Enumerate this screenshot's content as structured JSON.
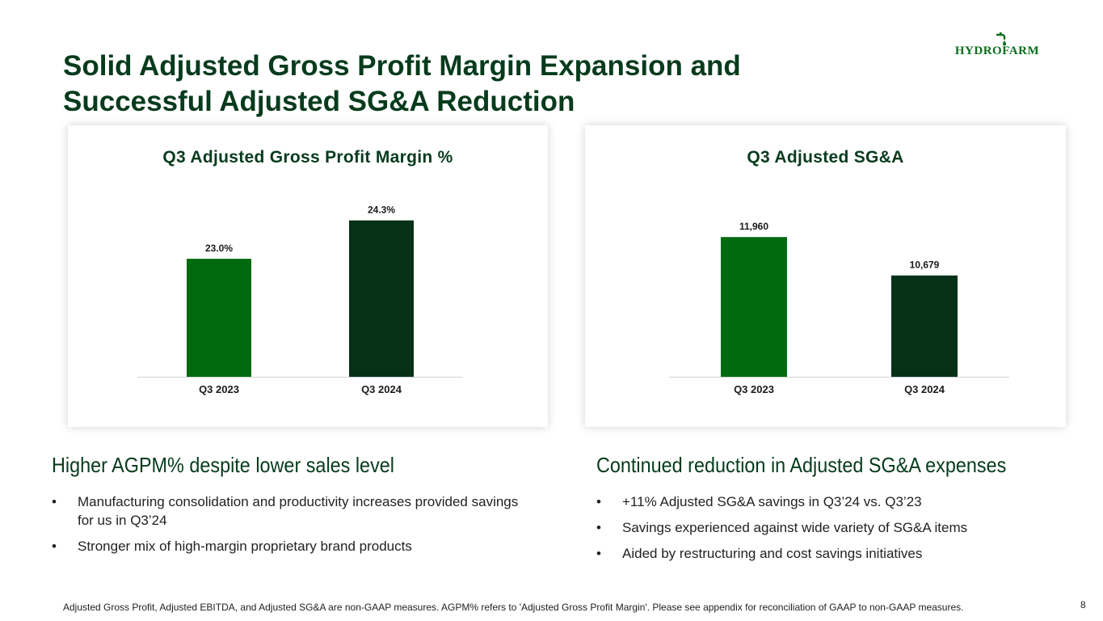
{
  "slide": {
    "title_line1": "Solid Adjusted Gross Profit Margin Expansion and",
    "title_line2": "Successful Adjusted SG&A Reduction",
    "logo_text": "HYDROFARM",
    "page_number": "8",
    "footnote": "Adjusted Gross Profit, Adjusted EBITDA, and Adjusted SG&A are non-GAAP measures.  AGPM% refers to 'Adjusted Gross Profit Margin'.  Please see appendix for reconciliation of GAAP to non-GAAP measures."
  },
  "colors": {
    "title_green": "#063b1c",
    "bar_light": "#006a10",
    "bar_dark": "#063117",
    "logo_green": "#0b6e1e"
  },
  "chart_data": [
    {
      "type": "bar",
      "title": "Q3 Adjusted Gross Profit Margin %",
      "categories": [
        "Q3 2023",
        "Q3 2024"
      ],
      "values": [
        23.0,
        24.3
      ],
      "labels": [
        "23.0%",
        "24.3%"
      ],
      "bar_colors": [
        "#006a10",
        "#063117"
      ],
      "ylim": [
        19,
        24.7
      ],
      "grid": false,
      "legend": "none"
    },
    {
      "type": "bar",
      "title": "Q3 Adjusted SG&A",
      "categories": [
        "Q3 2023",
        "Q3 2024"
      ],
      "values": [
        11960,
        10679
      ],
      "labels": [
        "11,960",
        "10,679"
      ],
      "bar_colors": [
        "#006a10",
        "#063117"
      ],
      "ylim": [
        7300,
        12450
      ],
      "grid": false,
      "legend": "none"
    }
  ],
  "left_section": {
    "heading": "Higher AGPM% despite lower sales level",
    "bullets": [
      "Manufacturing consolidation and productivity increases provided savings for us in Q3’24",
      "Stronger mix of high-margin proprietary brand products"
    ]
  },
  "right_section": {
    "heading": "Continued reduction in Adjusted SG&A expenses",
    "bullets": [
      "+11% Adjusted SG&A savings in Q3’24 vs. Q3’23",
      "Savings experienced against wide variety of SG&A items",
      "Aided by restructuring and cost savings initiatives"
    ]
  }
}
